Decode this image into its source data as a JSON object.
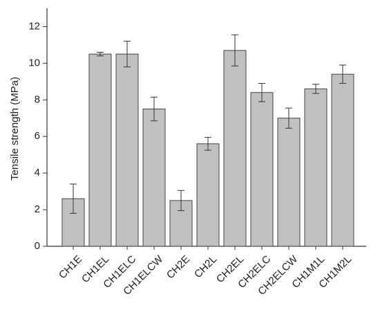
{
  "chart_data": {
    "type": "bar",
    "y_label": "Tensile strength (MPa)",
    "categories": [
      "CH1E",
      "CH1EL",
      "CH1ELC",
      "CH1ELCW",
      "CH2E",
      "CH2L",
      "CH2EL",
      "CH2ELC",
      "CH2ELCW",
      "CH1M1L",
      "CH1M2L"
    ],
    "values": [
      2.6,
      10.5,
      10.5,
      7.5,
      2.5,
      5.6,
      10.7,
      8.4,
      7.0,
      8.6,
      9.4
    ],
    "errors": [
      0.8,
      0.1,
      0.7,
      0.65,
      0.55,
      0.35,
      0.85,
      0.5,
      0.55,
      0.25,
      0.5
    ],
    "color": "#c0c0c0",
    "ylim": [
      0,
      13
    ],
    "yticks": [
      0,
      2,
      4,
      6,
      8,
      10,
      12
    ],
    "grid": false
  }
}
